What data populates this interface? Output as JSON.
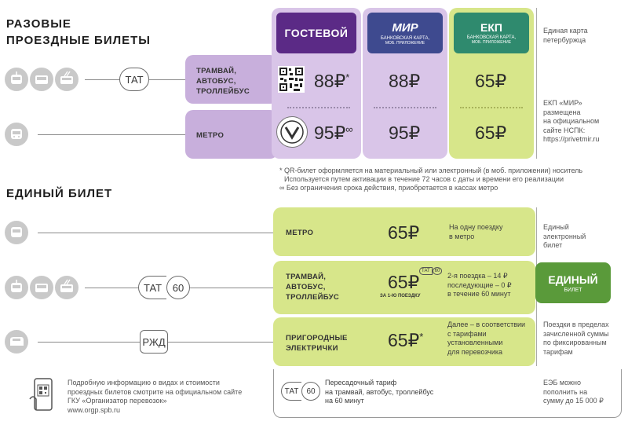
{
  "single": {
    "title_line1": "РАЗОВЫЕ",
    "title_line2": "ПРОЕЗДНЫЕ БИЛЕТЫ",
    "tat_label": "ТАТ",
    "columns": {
      "guest": "ГОСТЕВОЙ",
      "mir_logo": "МИР",
      "mir_sub1": "БАНКОВСКАЯ КАРТА,",
      "mir_sub2": "МОБ. ПРИЛОЖЕНИЕ",
      "ekp_title": "ЕКП",
      "ekp_sub1": "БАНКОВСКАЯ КАРТА,",
      "ekp_sub2": "МОБ. ПРИЛОЖЕНИЕ"
    },
    "rows": [
      {
        "label": "ТРАМВАЙ, АВТОБУС, ТРОЛЛЕЙБУС",
        "guest": "88₽",
        "guest_mark": "*",
        "mir": "88₽",
        "ekp": "65₽"
      },
      {
        "label": "МЕТРО",
        "guest": "95₽",
        "guest_mark": "∞",
        "mir": "95₽",
        "ekp": "65₽"
      }
    ],
    "side_top_1": "Единая карта",
    "side_top_2": "петербуржца",
    "side_mid_1": "ЕКП «МИР»",
    "side_mid_2": "размещена",
    "side_mid_3": "на официальном",
    "side_mid_4": "сайте НСПК:",
    "side_mid_5": "https://privetmir.ru",
    "footnote1_a": "* QR-билет оформляется на материальный или электронный (в моб. приложении) носитель",
    "footnote1_b": "Используется путем активации в течение 72 часов с даты и времени его реализации",
    "footnote2": "∞ Без ограничения срока действия, приобретается в кассах метро"
  },
  "unified": {
    "title": "ЕДИНЫЙ БИЛЕТ",
    "tat60_a": "ТАТ",
    "tat60_b": "60",
    "rzd": "РЖД",
    "rows": [
      {
        "label": "МЕТРО",
        "price": "65₽",
        "desc_1": "На одну поездку",
        "desc_2": "в метро",
        "desc_3": ""
      },
      {
        "label": "ТРАМВАЙ, АВТОБУС, ТРОЛЛЕЙБУС",
        "price": "65₽",
        "price_sub": "ЗА 1-Ю ПОЕЗДКУ",
        "badge_a": "ТАТ",
        "badge_b": "60",
        "desc_1": "2-я поездка – 14 ₽",
        "desc_2": "последующие – 0 ₽",
        "desc_3": "в течение 60 минут"
      },
      {
        "label": "ПРИГОРОДНЫЕ ЭЛЕКТРИЧКИ",
        "price": "65₽",
        "price_mark": "*",
        "desc_1": "Далее – в соответствии",
        "desc_2": "с тарифами",
        "desc_3": "установленными",
        "desc_4": "для перевозчика"
      }
    ],
    "badge_title": "ЕДИНЫЙ",
    "badge_sub": "БИЛЕТ",
    "side_1": "Единый",
    "side_2": "электронный",
    "side_3": "билет",
    "side_4": "Поездки в пределах",
    "side_5": "зачисленной суммы",
    "side_6": "по фиксированным",
    "side_7": "тарифам",
    "transfer_1": "Пересадочный тариф",
    "transfer_2": "на трамвай, автобус, троллейбус",
    "transfer_3": "на 60 минут",
    "eeb_1": "ЕЭБ можно",
    "eeb_2": "пополнить на",
    "eeb_3": "сумму до 15 000 ₽"
  },
  "info": {
    "line1": "Подробную информацию о видах и стоимости",
    "line2": "проездных билетов смотрите на официальном сайте",
    "line3": "ГКУ «Организатор перевозок»",
    "line4": "www.orgp.spb.ru"
  },
  "colors": {
    "guest": "#5b2a86",
    "mir": "#3e4a8f",
    "ekp": "#2f8a6e",
    "unified_badge": "#5a9a3a",
    "lavender": "#d9c5e8",
    "lime": "#d7e68a"
  }
}
